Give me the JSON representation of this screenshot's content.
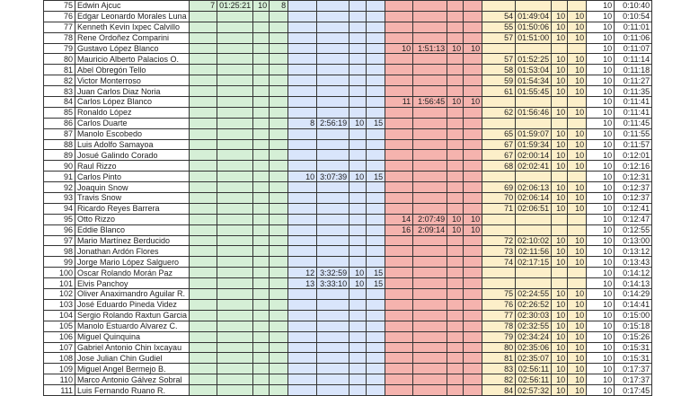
{
  "colors": {
    "green": "#d5efd6",
    "blue": "#d9e5fb",
    "red": "#f5b3ae",
    "yellow": "#fcefc9"
  },
  "rows": [
    {
      "n": "75",
      "name": "Edwin Ajcuc",
      "g": [
        "7",
        "01:25:21",
        "10",
        "8"
      ],
      "b": [
        "",
        "",
        "",
        ""
      ],
      "r": [
        "",
        "",
        "",
        ""
      ],
      "y": [
        "",
        "",
        "",
        ""
      ],
      "pts": "10",
      "time": "0:10:40"
    },
    {
      "n": "76",
      "name": "Edgar Leonardo Morales Luna",
      "g": [
        "",
        "",
        "",
        ""
      ],
      "b": [
        "",
        "",
        "",
        ""
      ],
      "r": [
        "",
        "",
        "",
        ""
      ],
      "y": [
        "54",
        "01:49:04",
        "10",
        "10"
      ],
      "pts": "10",
      "time": "0:10:54"
    },
    {
      "n": "77",
      "name": "Kenneth Kevin Ixpec Calvillo",
      "g": [
        "",
        "",
        "",
        ""
      ],
      "b": [
        "",
        "",
        "",
        ""
      ],
      "r": [
        "",
        "",
        "",
        ""
      ],
      "y": [
        "55",
        "01:50:06",
        "10",
        "10"
      ],
      "pts": "10",
      "time": "0:11:01"
    },
    {
      "n": "78",
      "name": "Rene Ordoñez Comparini",
      "g": [
        "",
        "",
        "",
        ""
      ],
      "b": [
        "",
        "",
        "",
        ""
      ],
      "r": [
        "",
        "",
        "",
        ""
      ],
      "y": [
        "57",
        "01:51:00",
        "10",
        "10"
      ],
      "pts": "10",
      "time": "0:11:06"
    },
    {
      "n": "79",
      "name": "Gustavo López Blanco",
      "g": [
        "",
        "",
        "",
        ""
      ],
      "b": [
        "",
        "",
        "",
        ""
      ],
      "r": [
        "10",
        "1:51:13",
        "10",
        "10"
      ],
      "y": [
        "",
        "",
        "",
        ""
      ],
      "pts": "10",
      "time": "0:11:07"
    },
    {
      "n": "80",
      "name": "Mauricio Alberto Palacios O.",
      "g": [
        "",
        "",
        "",
        ""
      ],
      "b": [
        "",
        "",
        "",
        ""
      ],
      "r": [
        "",
        "",
        "",
        ""
      ],
      "y": [
        "57",
        "01:52:25",
        "10",
        "10"
      ],
      "pts": "10",
      "time": "0:11:14"
    },
    {
      "n": "81",
      "name": "Abel Obregón Tello",
      "g": [
        "",
        "",
        "",
        ""
      ],
      "b": [
        "",
        "",
        "",
        ""
      ],
      "r": [
        "",
        "",
        "",
        ""
      ],
      "y": [
        "58",
        "01:53:04",
        "10",
        "10"
      ],
      "pts": "10",
      "time": "0:11:18"
    },
    {
      "n": "82",
      "name": "Victor Monterroso",
      "g": [
        "",
        "",
        "",
        ""
      ],
      "b": [
        "",
        "",
        "",
        ""
      ],
      "r": [
        "",
        "",
        "",
        ""
      ],
      "y": [
        "59",
        "01:54:34",
        "10",
        "10"
      ],
      "pts": "10",
      "time": "0:11:27"
    },
    {
      "n": "83",
      "name": "Juan Carlos Diaz Noria",
      "g": [
        "",
        "",
        "",
        ""
      ],
      "b": [
        "",
        "",
        "",
        ""
      ],
      "r": [
        "",
        "",
        "",
        ""
      ],
      "y": [
        "61",
        "01:55:45",
        "10",
        "10"
      ],
      "pts": "10",
      "time": "0:11:35"
    },
    {
      "n": "84",
      "name": "Carlos López Blanco",
      "g": [
        "",
        "",
        "",
        ""
      ],
      "b": [
        "",
        "",
        "",
        ""
      ],
      "r": [
        "11",
        "1:56:45",
        "10",
        "10"
      ],
      "y": [
        "",
        "",
        "",
        ""
      ],
      "pts": "10",
      "time": "0:11:41"
    },
    {
      "n": "85",
      "name": "Ronaldo López",
      "g": [
        "",
        "",
        "",
        ""
      ],
      "b": [
        "",
        "",
        "",
        ""
      ],
      "r": [
        "",
        "",
        "",
        ""
      ],
      "y": [
        "62",
        "01:56:46",
        "10",
        "10"
      ],
      "pts": "10",
      "time": "0:11:41"
    },
    {
      "n": "86",
      "name": "Carlos Duarte",
      "g": [
        "",
        "",
        "",
        ""
      ],
      "b": [
        "8",
        "2:56:19",
        "10",
        "15"
      ],
      "r": [
        "",
        "",
        "",
        ""
      ],
      "y": [
        "",
        "",
        "",
        ""
      ],
      "pts": "10",
      "time": "0:11:45"
    },
    {
      "n": "87",
      "name": "Manolo Escobedo",
      "g": [
        "",
        "",
        "",
        ""
      ],
      "b": [
        "",
        "",
        "",
        ""
      ],
      "r": [
        "",
        "",
        "",
        ""
      ],
      "y": [
        "65",
        "01:59:07",
        "10",
        "10"
      ],
      "pts": "10",
      "time": "0:11:55"
    },
    {
      "n": "88",
      "name": "Luis Adolfo Samayoa",
      "g": [
        "",
        "",
        "",
        ""
      ],
      "b": [
        "",
        "",
        "",
        ""
      ],
      "r": [
        "",
        "",
        "",
        ""
      ],
      "y": [
        "67",
        "01:59:34",
        "10",
        "10"
      ],
      "pts": "10",
      "time": "0:11:57"
    },
    {
      "n": "89",
      "name": "Josué Galindo Corado",
      "g": [
        "",
        "",
        "",
        ""
      ],
      "b": [
        "",
        "",
        "",
        ""
      ],
      "r": [
        "",
        "",
        "",
        ""
      ],
      "y": [
        "67",
        "02:00:14",
        "10",
        "10"
      ],
      "pts": "10",
      "time": "0:12:01"
    },
    {
      "n": "90",
      "name": "Raul Rizzo",
      "g": [
        "",
        "",
        "",
        ""
      ],
      "b": [
        "",
        "",
        "",
        ""
      ],
      "r": [
        "",
        "",
        "",
        ""
      ],
      "y": [
        "68",
        "02:02:41",
        "10",
        "10"
      ],
      "pts": "10",
      "time": "0:12:16"
    },
    {
      "n": "91",
      "name": "Carlos Pinto",
      "g": [
        "",
        "",
        "",
        ""
      ],
      "b": [
        "10",
        "3:07:39",
        "10",
        "15"
      ],
      "r": [
        "",
        "",
        "",
        ""
      ],
      "y": [
        "",
        "",
        "",
        ""
      ],
      "pts": "10",
      "time": "0:12:31"
    },
    {
      "n": "92",
      "name": "Joaquin Snow",
      "g": [
        "",
        "",
        "",
        ""
      ],
      "b": [
        "",
        "",
        "",
        ""
      ],
      "r": [
        "",
        "",
        "",
        ""
      ],
      "y": [
        "69",
        "02:06:13",
        "10",
        "10"
      ],
      "pts": "10",
      "time": "0:12:37"
    },
    {
      "n": "93",
      "name": "Travis Snow",
      "g": [
        "",
        "",
        "",
        ""
      ],
      "b": [
        "",
        "",
        "",
        ""
      ],
      "r": [
        "",
        "",
        "",
        ""
      ],
      "y": [
        "70",
        "02:06:14",
        "10",
        "10"
      ],
      "pts": "10",
      "time": "0:12:37"
    },
    {
      "n": "94",
      "name": "Ricardo Reyes Barrera",
      "g": [
        "",
        "",
        "",
        ""
      ],
      "b": [
        "",
        "",
        "",
        ""
      ],
      "r": [
        "",
        "",
        "",
        ""
      ],
      "y": [
        "71",
        "02:06:51",
        "10",
        "10"
      ],
      "pts": "10",
      "time": "0:12:41"
    },
    {
      "n": "95",
      "name": "Otto Rizzo",
      "g": [
        "",
        "",
        "",
        ""
      ],
      "b": [
        "",
        "",
        "",
        ""
      ],
      "r": [
        "14",
        "2:07:49",
        "10",
        "10"
      ],
      "y": [
        "",
        "",
        "",
        ""
      ],
      "pts": "10",
      "time": "0:12:47"
    },
    {
      "n": "96",
      "name": "Eddie Blanco",
      "g": [
        "",
        "",
        "",
        ""
      ],
      "b": [
        "",
        "",
        "",
        ""
      ],
      "r": [
        "16",
        "2:09:14",
        "10",
        "10"
      ],
      "y": [
        "",
        "",
        "",
        ""
      ],
      "pts": "10",
      "time": "0:12:55"
    },
    {
      "n": "97",
      "name": "Mario Martínez Berducido",
      "g": [
        "",
        "",
        "",
        ""
      ],
      "b": [
        "",
        "",
        "",
        ""
      ],
      "r": [
        "",
        "",
        "",
        ""
      ],
      "y": [
        "72",
        "02:10:02",
        "10",
        "10"
      ],
      "pts": "10",
      "time": "0:13:00"
    },
    {
      "n": "98",
      "name": "Jonathan Ardón Flores",
      "g": [
        "",
        "",
        "",
        ""
      ],
      "b": [
        "",
        "",
        "",
        ""
      ],
      "r": [
        "",
        "",
        "",
        ""
      ],
      "y": [
        "73",
        "02:11:56",
        "10",
        "10"
      ],
      "pts": "10",
      "time": "0:13:12"
    },
    {
      "n": "99",
      "name": "Jorge Mario López Salguero",
      "g": [
        "",
        "",
        "",
        ""
      ],
      "b": [
        "",
        "",
        "",
        ""
      ],
      "r": [
        "",
        "",
        "",
        ""
      ],
      "y": [
        "74",
        "02:17:15",
        "10",
        "10"
      ],
      "pts": "10",
      "time": "0:13:43"
    },
    {
      "n": "100",
      "name": "Oscar Rolando Morán Paz",
      "g": [
        "",
        "",
        "",
        ""
      ],
      "b": [
        "12",
        "3:32:59",
        "10",
        "15"
      ],
      "r": [
        "",
        "",
        "",
        ""
      ],
      "y": [
        "",
        "",
        "",
        ""
      ],
      "pts": "10",
      "time": "0:14:12"
    },
    {
      "n": "101",
      "name": "Elvis Panchoy",
      "g": [
        "",
        "",
        "",
        ""
      ],
      "b": [
        "13",
        "3:33:10",
        "10",
        "15"
      ],
      "r": [
        "",
        "",
        "",
        ""
      ],
      "y": [
        "",
        "",
        "",
        ""
      ],
      "pts": "10",
      "time": "0:14:13"
    },
    {
      "n": "102",
      "name": "Oliver Anaximandro Aguilar R.",
      "g": [
        "",
        "",
        "",
        ""
      ],
      "b": [
        "",
        "",
        "",
        ""
      ],
      "r": [
        "",
        "",
        "",
        ""
      ],
      "y": [
        "75",
        "02:24:55",
        "10",
        "10"
      ],
      "pts": "10",
      "time": "0:14:29"
    },
    {
      "n": "103",
      "name": "José Eduardo Pineda Videz",
      "g": [
        "",
        "",
        "",
        ""
      ],
      "b": [
        "",
        "",
        "",
        ""
      ],
      "r": [
        "",
        "",
        "",
        ""
      ],
      "y": [
        "76",
        "02:26:52",
        "10",
        "10"
      ],
      "pts": "10",
      "time": "0:14:41"
    },
    {
      "n": "104",
      "name": "Sergio Rolando Raxtun Garcia",
      "g": [
        "",
        "",
        "",
        ""
      ],
      "b": [
        "",
        "",
        "",
        ""
      ],
      "r": [
        "",
        "",
        "",
        ""
      ],
      "y": [
        "77",
        "02:30:03",
        "10",
        "10"
      ],
      "pts": "10",
      "time": "0:15:00"
    },
    {
      "n": "105",
      "name": "Manolo Estuardo Alvarez C.",
      "g": [
        "",
        "",
        "",
        ""
      ],
      "b": [
        "",
        "",
        "",
        ""
      ],
      "r": [
        "",
        "",
        "",
        ""
      ],
      "y": [
        "78",
        "02:32:55",
        "10",
        "10"
      ],
      "pts": "10",
      "time": "0:15:18"
    },
    {
      "n": "106",
      "name": "Miguel Quinquina",
      "g": [
        "",
        "",
        "",
        ""
      ],
      "b": [
        "",
        "",
        "",
        ""
      ],
      "r": [
        "",
        "",
        "",
        ""
      ],
      "y": [
        "79",
        "02:34:24",
        "10",
        "10"
      ],
      "pts": "10",
      "time": "0:15:26"
    },
    {
      "n": "107",
      "name": "Gabriel Antonio Chin Ixcayau",
      "g": [
        "",
        "",
        "",
        ""
      ],
      "b": [
        "",
        "",
        "",
        ""
      ],
      "r": [
        "",
        "",
        "",
        ""
      ],
      "y": [
        "80",
        "02:35:06",
        "10",
        "10"
      ],
      "pts": "10",
      "time": "0:15:31"
    },
    {
      "n": "108",
      "name": "Jose Julian Chin Gudiel",
      "g": [
        "",
        "",
        "",
        ""
      ],
      "b": [
        "",
        "",
        "",
        ""
      ],
      "r": [
        "",
        "",
        "",
        ""
      ],
      "y": [
        "81",
        "02:35:07",
        "10",
        "10"
      ],
      "pts": "10",
      "time": "0:15:31"
    },
    {
      "n": "109",
      "name": "Miguel Angel Bermejo B.",
      "g": [
        "",
        "",
        "",
        ""
      ],
      "b": [
        "",
        "",
        "",
        ""
      ],
      "r": [
        "",
        "",
        "",
        ""
      ],
      "y": [
        "83",
        "02:56:11",
        "10",
        "10"
      ],
      "pts": "10",
      "time": "0:17:37"
    },
    {
      "n": "110",
      "name": "Marco Antonio Gálvez Sobral",
      "g": [
        "",
        "",
        "",
        ""
      ],
      "b": [
        "",
        "",
        "",
        ""
      ],
      "r": [
        "",
        "",
        "",
        ""
      ],
      "y": [
        "82",
        "02:56:11",
        "10",
        "10"
      ],
      "pts": "10",
      "time": "0:17:37"
    },
    {
      "n": "111",
      "name": "Luis Fernando Ruano R.",
      "g": [
        "",
        "",
        "",
        ""
      ],
      "b": [
        "",
        "",
        "",
        ""
      ],
      "r": [
        "",
        "",
        "",
        ""
      ],
      "y": [
        "84",
        "02:57:32",
        "10",
        "10"
      ],
      "pts": "10",
      "time": "0:17:45"
    }
  ]
}
